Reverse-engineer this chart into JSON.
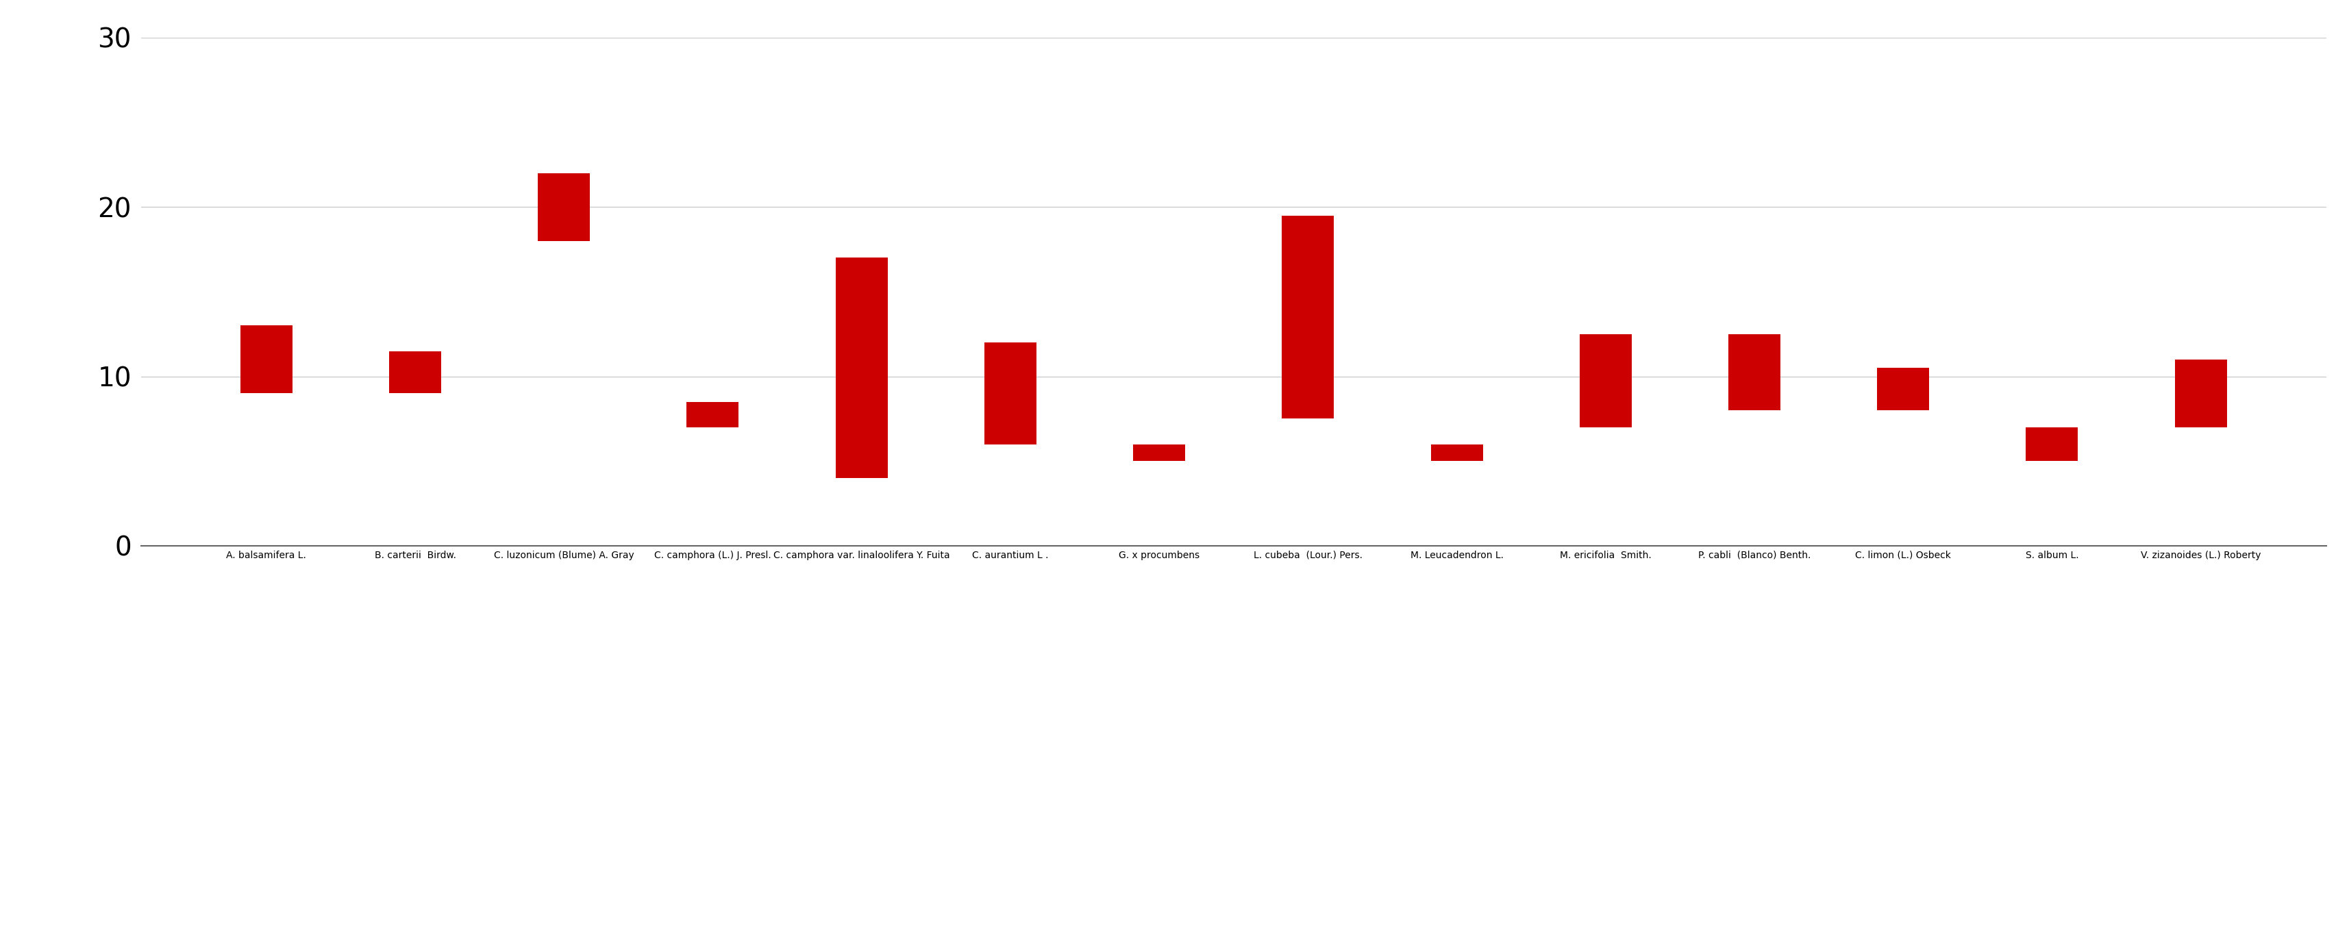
{
  "categories": [
    "A. balsamifera L.",
    "B. carterii  Birdw.",
    "C. luzonicum (Blume) A. Gray",
    "C. camphora (L.) J. Presl.",
    "C. camphora var. linaloolifera Y. Fuita",
    "C. aurantium L .",
    "G. x procumbens",
    "L. cubeba  (Lour.) Pers.",
    "M. Leucadendron L.",
    "M. ericifolia  Smith.",
    "P. cabli  (Blanco) Benth.",
    "C. limon (L.) Osbeck",
    "S. album L.",
    "V. zizanoides (L.) Roberty"
  ],
  "bar_bottoms": [
    9.0,
    9.0,
    18.0,
    7.0,
    4.0,
    6.0,
    5.0,
    7.5,
    5.0,
    7.0,
    8.0,
    8.0,
    5.0,
    7.0
  ],
  "bar_tops": [
    13.0,
    11.5,
    22.0,
    8.5,
    17.0,
    12.0,
    6.0,
    19.5,
    6.0,
    12.5,
    12.5,
    10.5,
    7.0,
    11.0
  ],
  "bar_color": "#cc0000",
  "ylim": [
    0,
    30
  ],
  "yticks": [
    0,
    10,
    20,
    30
  ],
  "background_color": "#ffffff",
  "grid_color": "#cccccc",
  "ytick_fontsize": 28,
  "xtick_fontsize": 24
}
